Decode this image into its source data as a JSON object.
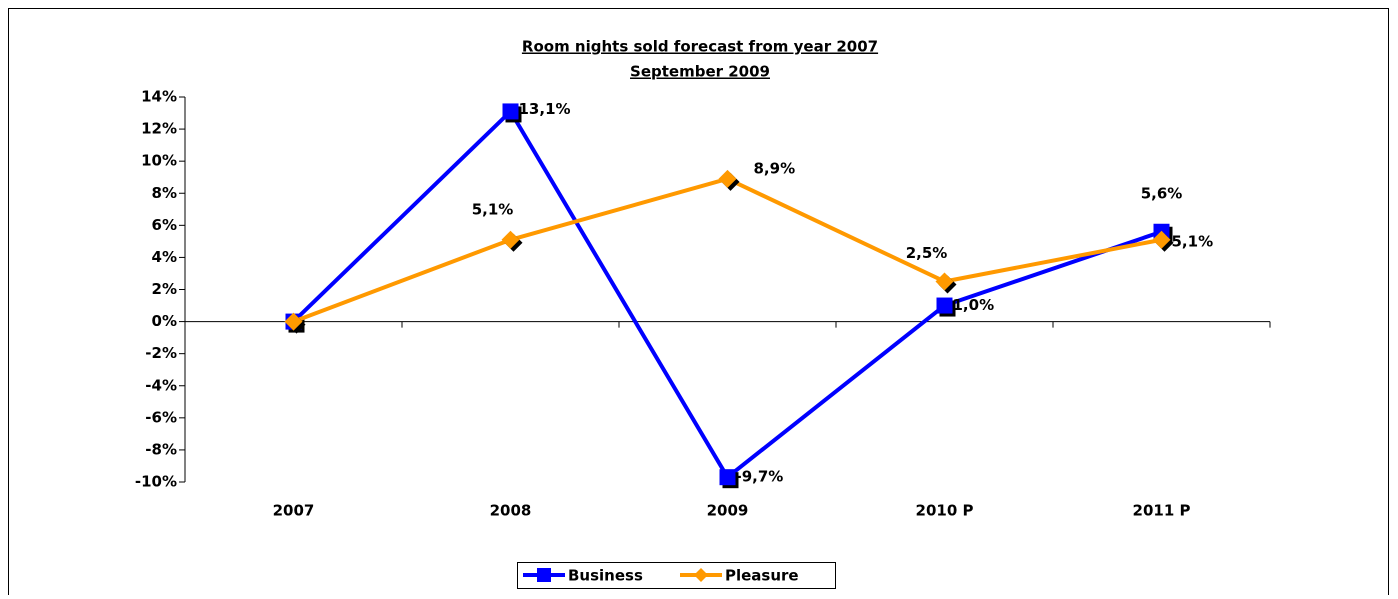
{
  "chart_data": {
    "type": "line",
    "title": "Room nights sold forecast from year 2007",
    "subtitle": "September 2009",
    "categories": [
      "2007",
      "2008",
      "2009",
      "2010 P",
      "2011 P"
    ],
    "series": [
      {
        "name": "Business",
        "color": "#0000ff",
        "marker": "square",
        "values": [
          0,
          13.1,
          -9.7,
          1.0,
          5.6
        ],
        "value_labels": [
          null,
          "13,1%",
          "-9,7%",
          "1,0%",
          "5,6%"
        ]
      },
      {
        "name": "Pleasure",
        "color": "#ff9900",
        "marker": "diamond",
        "values": [
          0,
          5.1,
          8.9,
          2.5,
          5.1
        ],
        "value_labels": [
          null,
          "5,1%",
          "8,9%",
          "2,5%",
          "5,1%"
        ]
      }
    ],
    "ylim": [
      -10,
      14
    ],
    "yticks": [
      {
        "value": -10,
        "label": "-10%"
      },
      {
        "value": -8,
        "label": "-8%"
      },
      {
        "value": -6,
        "label": "-6%"
      },
      {
        "value": -4,
        "label": "-4%"
      },
      {
        "value": -2,
        "label": "-2%"
      },
      {
        "value": 0,
        "label": "0%"
      },
      {
        "value": 2,
        "label": "2%"
      },
      {
        "value": 4,
        "label": "4%"
      },
      {
        "value": 6,
        "label": "6%"
      },
      {
        "value": 8,
        "label": "8%"
      },
      {
        "value": 10,
        "label": "10%"
      },
      {
        "value": 12,
        "label": "12%"
      },
      {
        "value": 14,
        "label": "14%"
      }
    ],
    "grid": false,
    "legend": "bottom"
  }
}
